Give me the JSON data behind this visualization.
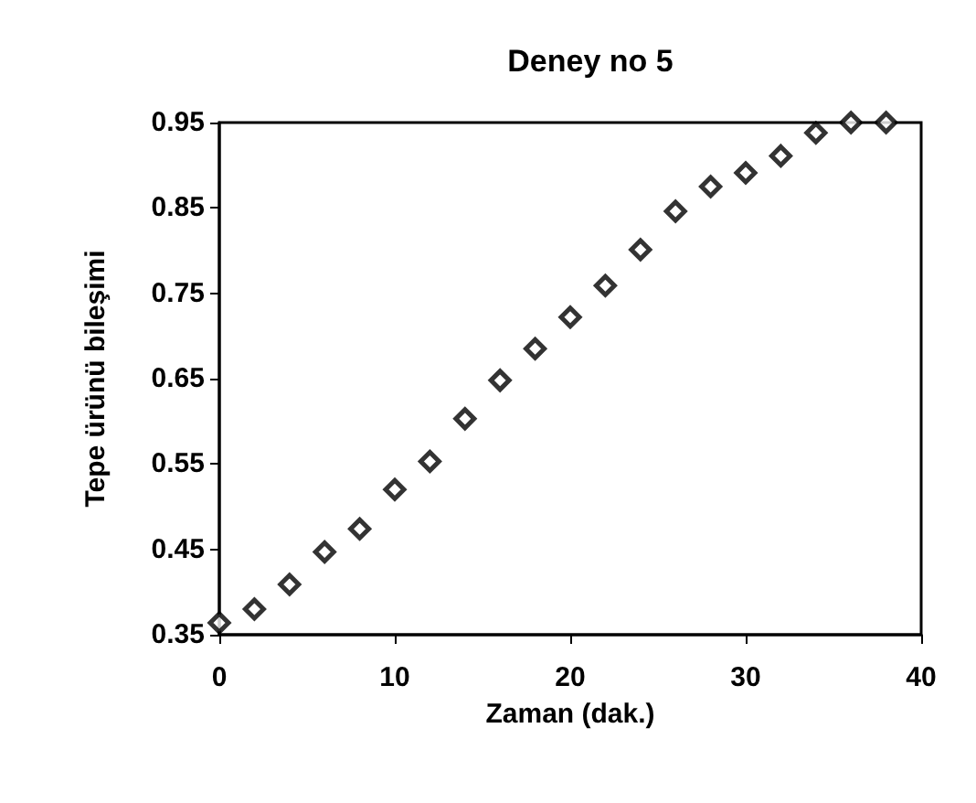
{
  "chart_data": {
    "type": "scatter",
    "title": "Deney no 5",
    "xlabel": "Zaman (dak.)",
    "ylabel": "Tepe ürünü bileşimi",
    "x": [
      0,
      2,
      4,
      6,
      8,
      10,
      12,
      14,
      16,
      18,
      20,
      22,
      24,
      26,
      28,
      30,
      32,
      34,
      36,
      38
    ],
    "series": [
      {
        "color": "#000000",
        "values": [
          0.364,
          0.38,
          0.409,
          0.447,
          0.474,
          0.52,
          0.553,
          0.603,
          0.648,
          0.685,
          0.722,
          0.759,
          0.801,
          0.846,
          0.875,
          0.891,
          0.911,
          0.938,
          0.95,
          0.95
        ]
      }
    ],
    "xlim": [
      0,
      40
    ],
    "xticks": [
      0,
      10,
      20,
      30,
      40
    ],
    "ylim": [
      0.35,
      0.95
    ],
    "yticks": [
      0.35,
      0.45,
      0.55,
      0.65,
      0.75,
      0.85,
      0.95
    ],
    "grid": false,
    "marker": "diamond"
  }
}
